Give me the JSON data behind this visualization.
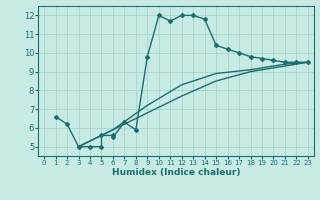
{
  "xlabel": "Humidex (Indice chaleur)",
  "bg_color": "#c8eae4",
  "grid_color": "#a8d4ce",
  "line_color": "#1a6e6e",
  "xlim": [
    -0.5,
    23.5
  ],
  "ylim": [
    4.5,
    12.5
  ],
  "xticks": [
    0,
    1,
    2,
    3,
    4,
    5,
    6,
    7,
    8,
    9,
    10,
    11,
    12,
    13,
    14,
    15,
    16,
    17,
    18,
    19,
    20,
    21,
    22,
    23
  ],
  "yticks": [
    5,
    6,
    7,
    8,
    9,
    10,
    11,
    12
  ],
  "curve1_x": [
    1,
    2,
    3,
    4,
    5,
    5,
    6,
    6,
    7,
    8,
    9,
    10,
    11,
    12,
    13,
    14,
    15,
    16,
    17,
    18,
    19,
    20,
    21,
    22,
    23
  ],
  "curve1_y": [
    6.6,
    6.2,
    5.0,
    5.0,
    5.0,
    5.6,
    5.6,
    5.5,
    6.3,
    5.9,
    9.8,
    12.0,
    11.7,
    12.0,
    12.0,
    11.8,
    10.4,
    10.2,
    10.0,
    9.8,
    9.7,
    9.6,
    9.5,
    9.5,
    9.5
  ],
  "curve2_x": [
    3,
    6,
    9,
    12,
    15,
    18,
    21,
    23
  ],
  "curve2_y": [
    5.0,
    5.9,
    6.8,
    7.7,
    8.5,
    9.0,
    9.3,
    9.5
  ],
  "curve3_x": [
    3,
    6,
    9,
    12,
    15,
    18,
    21,
    23
  ],
  "curve3_y": [
    5.0,
    5.9,
    7.2,
    8.3,
    8.9,
    9.1,
    9.4,
    9.5
  ]
}
